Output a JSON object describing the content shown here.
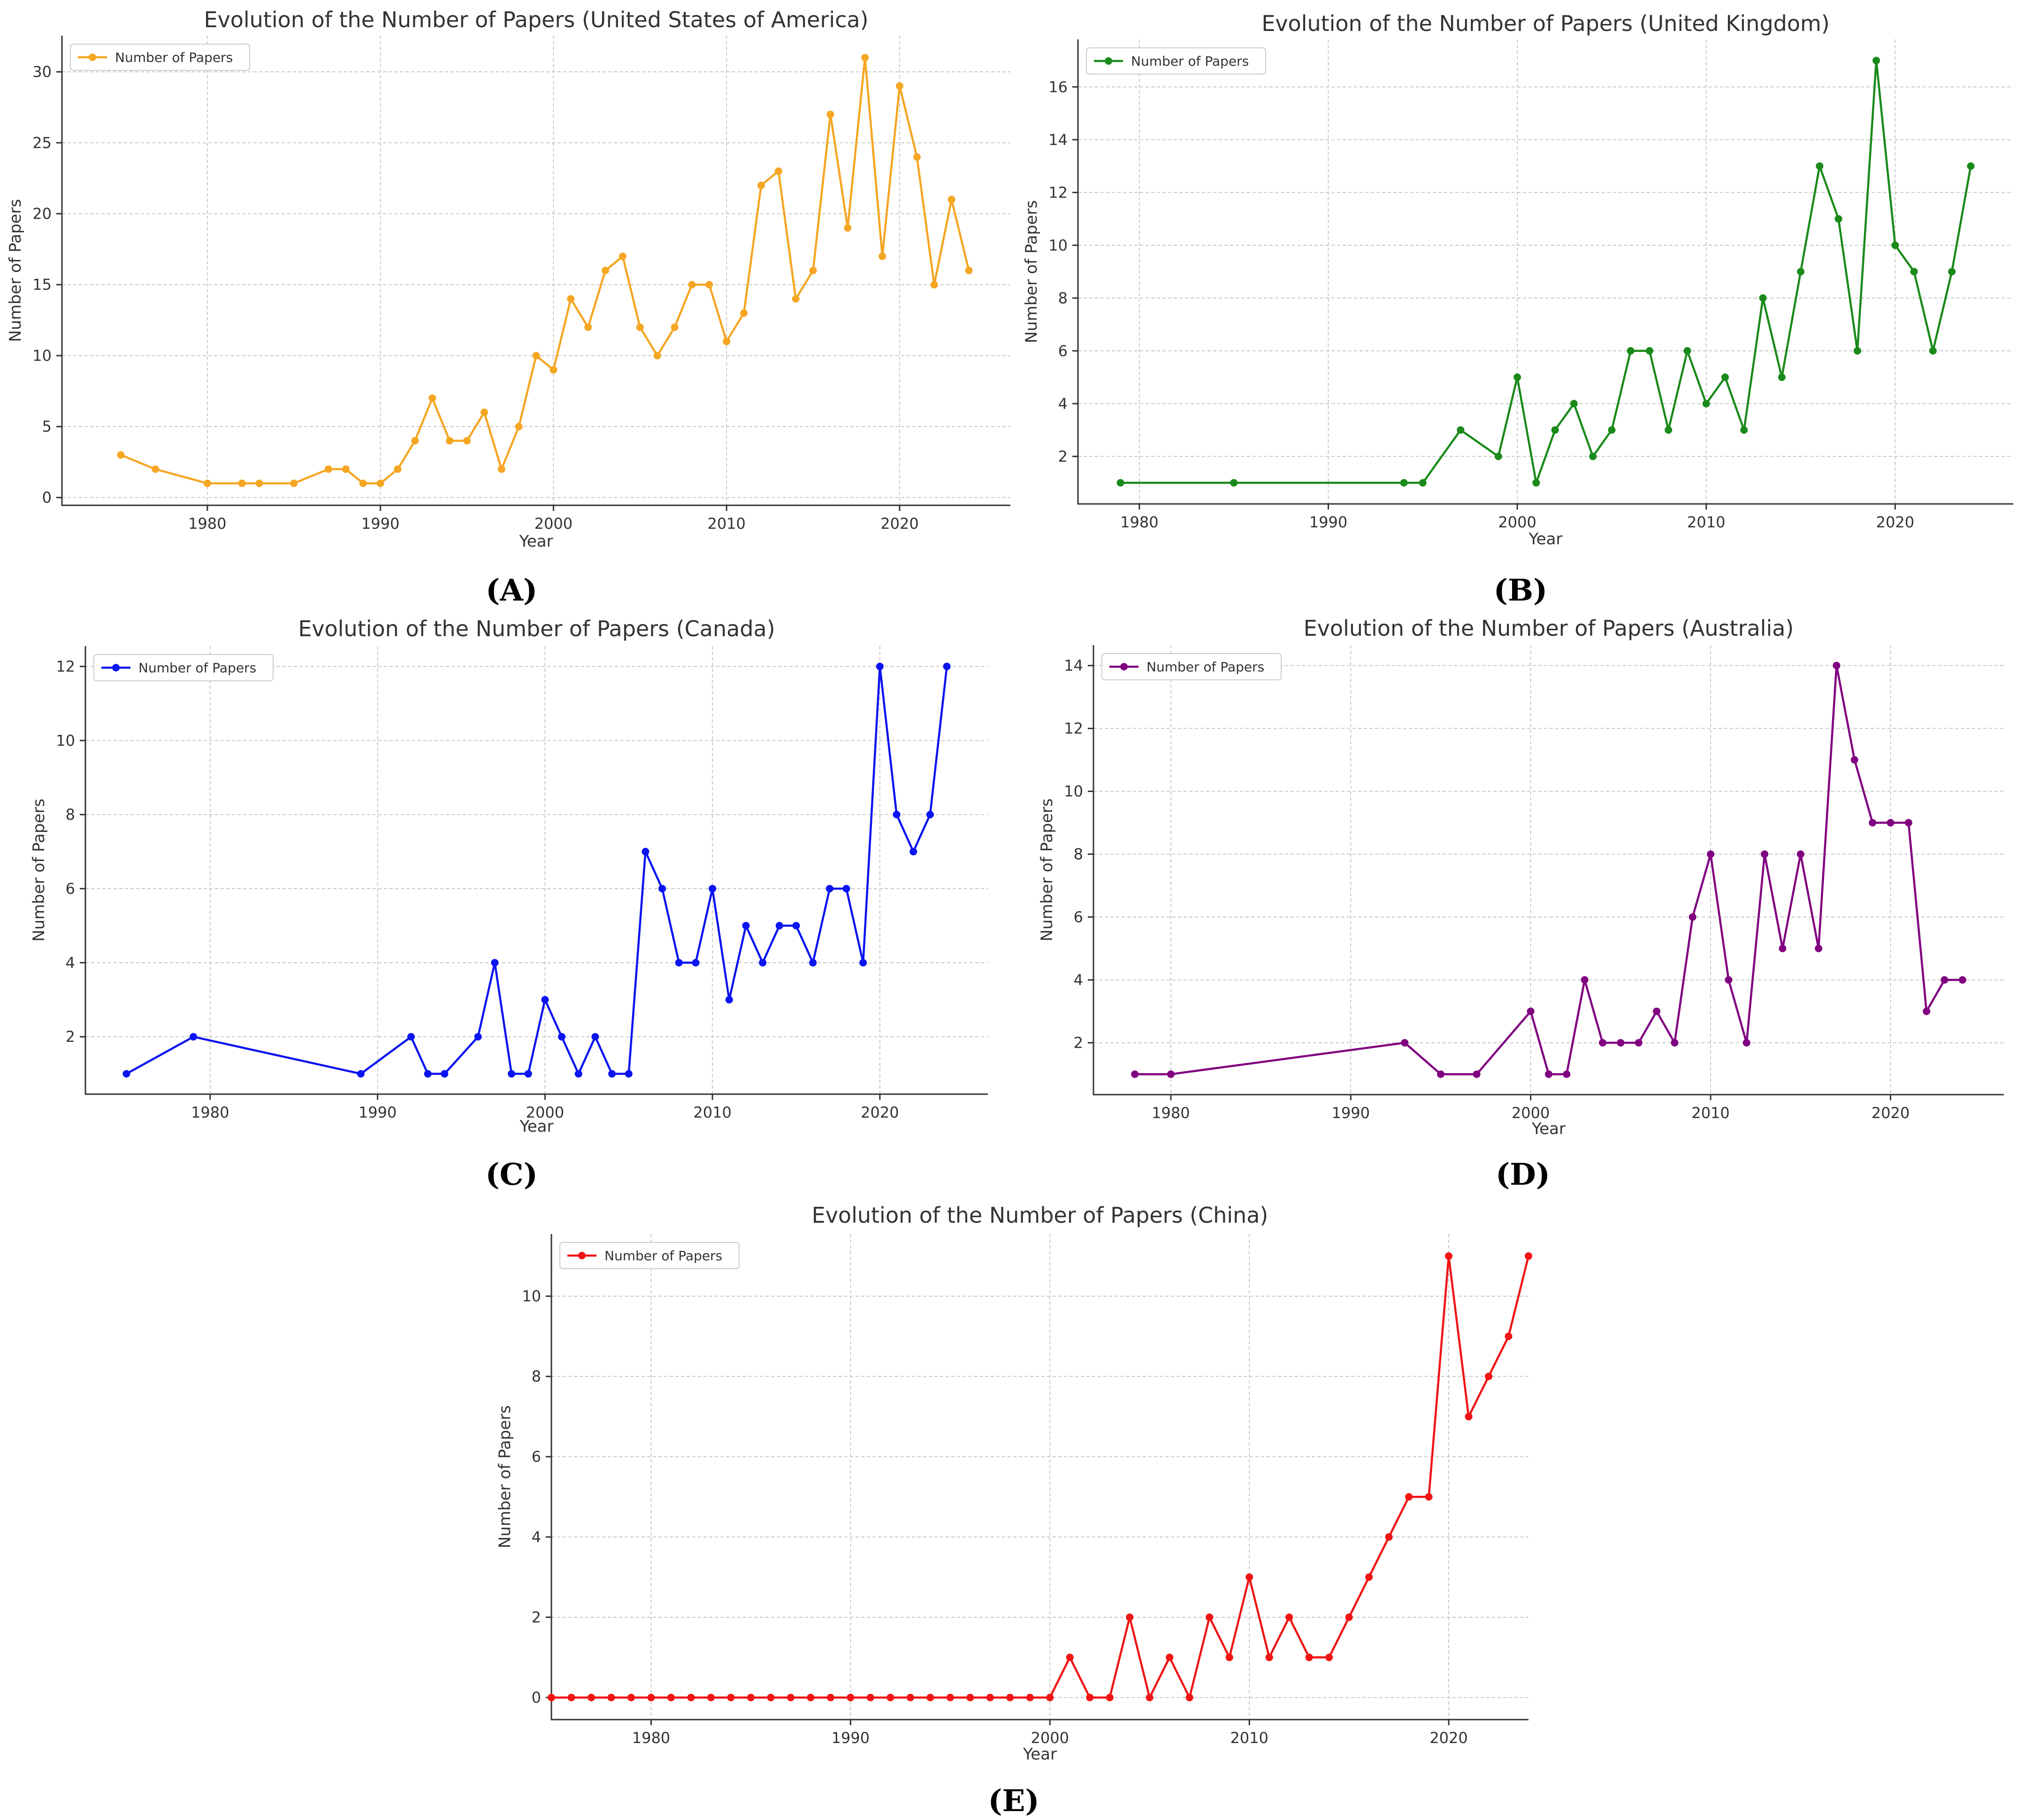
{
  "chart_data": [
    {
      "type": "line",
      "panel": "(A)",
      "title": "Evolution of the Number of Papers (United States of America)",
      "xlabel": "Year",
      "ylabel": "Number of Papers",
      "color": "#f5a623",
      "legend": "top-left",
      "grid": true,
      "xlim": [
        1971.6,
        2026.4
      ],
      "ylim": [
        -0.55,
        32.55
      ],
      "xticks": [
        1980,
        1990,
        2000,
        2010,
        2020
      ],
      "yticks": [
        0,
        5,
        10,
        15,
        20,
        25,
        30
      ],
      "series": [
        {
          "name": "Number of Papers",
          "x": [
            1975,
            1977,
            1980,
            1982,
            1983,
            1985,
            1987,
            1988,
            1989,
            1990,
            1991,
            1992,
            1993,
            1994,
            1995,
            1996,
            1997,
            1998,
            1999,
            2000,
            2001,
            2002,
            2003,
            2004,
            2005,
            2006,
            2007,
            2008,
            2009,
            2010,
            2011,
            2012,
            2013,
            2014,
            2015,
            2016,
            2017,
            2018,
            2019,
            2020,
            2021,
            2022,
            2023,
            2024
          ],
          "y": [
            3,
            2,
            1,
            1,
            1,
            1,
            2,
            2,
            1,
            1,
            2,
            4,
            7,
            4,
            4,
            6,
            2,
            5,
            10,
            9,
            14,
            12,
            16,
            17,
            12,
            10,
            12,
            15,
            15,
            11,
            13,
            22,
            23,
            14,
            16,
            27,
            19,
            31,
            17,
            29,
            24,
            15,
            21,
            16
          ]
        }
      ]
    },
    {
      "type": "line",
      "panel": "(B)",
      "title": "Evolution of the Number of Papers (United Kingdom)",
      "xlabel": "Year",
      "ylabel": "Number of Papers",
      "color": "#1a8a1a",
      "legend": "top-left",
      "grid": true,
      "xlim": [
        1976.75,
        2026.25
      ],
      "ylim": [
        0.2,
        17.8
      ],
      "xticks": [
        1980,
        1990,
        2000,
        2010,
        2020
      ],
      "yticks": [
        2,
        4,
        6,
        8,
        10,
        12,
        14,
        16
      ],
      "series": [
        {
          "name": "Number of Papers",
          "x": [
            1979,
            1985,
            1994,
            1995,
            1997,
            1999,
            2000,
            2001,
            2002,
            2003,
            2004,
            2005,
            2006,
            2007,
            2008,
            2009,
            2010,
            2011,
            2012,
            2013,
            2014,
            2015,
            2016,
            2017,
            2018,
            2019,
            2020,
            2021,
            2022,
            2023,
            2024
          ],
          "y": [
            1,
            1,
            1,
            1,
            3,
            2,
            5,
            1,
            3,
            4,
            2,
            3,
            6,
            6,
            3,
            6,
            4,
            5,
            3,
            8,
            5,
            9,
            13,
            11,
            6,
            17,
            10,
            9,
            6,
            9,
            13
          ]
        }
      ]
    },
    {
      "type": "line",
      "panel": "(C)",
      "title": "Evolution of the Number of Papers (Canada)",
      "xlabel": "Year",
      "ylabel": "Number of Papers",
      "color": "#0a14f0",
      "legend": "top-left",
      "grid": true,
      "xlim": [
        1972.55,
        2026.45
      ],
      "ylim": [
        0.45,
        12.55
      ],
      "xticks": [
        1980,
        1990,
        2000,
        2010,
        2020
      ],
      "yticks": [
        2,
        4,
        6,
        8,
        10,
        12
      ],
      "series": [
        {
          "name": "Number of Papers",
          "x": [
            1975,
            1979,
            1989,
            1992,
            1993,
            1994,
            1996,
            1997,
            1998,
            1999,
            2000,
            2001,
            2002,
            2003,
            2004,
            2005,
            2006,
            2007,
            2008,
            2009,
            2010,
            2011,
            2012,
            2013,
            2014,
            2015,
            2016,
            2017,
            2018,
            2019,
            2020,
            2021,
            2022,
            2023,
            2024
          ],
          "y": [
            1,
            2,
            1,
            2,
            1,
            1,
            2,
            4,
            1,
            1,
            3,
            2,
            1,
            2,
            1,
            1,
            7,
            6,
            4,
            4,
            6,
            3,
            5,
            4,
            5,
            5,
            4,
            6,
            6,
            4,
            12,
            8,
            7,
            8,
            12
          ]
        }
      ]
    },
    {
      "type": "line",
      "panel": "(D)",
      "title": "Evolution of the Number of Papers (Australia)",
      "xlabel": "Year",
      "ylabel": "Number of Papers",
      "color": "#800080",
      "legend": "top-left",
      "grid": true,
      "xlim": [
        1975.7,
        2026.3
      ],
      "ylim": [
        0.35,
        14.65
      ],
      "xticks": [
        1980,
        1990,
        2000,
        2010,
        2020
      ],
      "yticks": [
        2,
        4,
        6,
        8,
        10,
        12,
        14
      ],
      "series": [
        {
          "name": "Number of Papers",
          "x": [
            1978,
            1980,
            1993,
            1995,
            1997,
            2000,
            2001,
            2002,
            2003,
            2004,
            2005,
            2006,
            2007,
            2008,
            2009,
            2010,
            2011,
            2012,
            2013,
            2014,
            2015,
            2016,
            2017,
            2018,
            2019,
            2020,
            2021,
            2022,
            2023,
            2024
          ],
          "y": [
            1,
            1,
            2,
            1,
            1,
            3,
            1,
            1,
            4,
            2,
            2,
            2,
            3,
            2,
            6,
            8,
            4,
            2,
            8,
            5,
            8,
            5,
            14,
            11,
            9,
            9,
            9,
            3,
            4,
            4
          ]
        }
      ]
    },
    {
      "type": "line",
      "panel": "(E)",
      "title": "Evolution of the Number of Papers (China)",
      "xlabel": "Year",
      "ylabel": "Number of Papers",
      "color": "#f01414",
      "legend": "top-left",
      "grid": true,
      "xlim": [
        1975,
        2024
      ],
      "ylim": [
        -0.55,
        11.55
      ],
      "xticks": [
        1980,
        1990,
        2000,
        2010,
        2020
      ],
      "yticks": [
        0,
        2,
        4,
        6,
        8,
        10
      ],
      "series": [
        {
          "name": "Number of Papers",
          "x": [
            1975,
            1976,
            1977,
            1978,
            1979,
            1980,
            1981,
            1982,
            1983,
            1984,
            1985,
            1986,
            1987,
            1988,
            1989,
            1990,
            1991,
            1992,
            1993,
            1994,
            1995,
            1996,
            1997,
            1998,
            1999,
            2000,
            2001,
            2002,
            2003,
            2004,
            2005,
            2006,
            2007,
            2008,
            2009,
            2010,
            2011,
            2012,
            2013,
            2014,
            2015,
            2016,
            2017,
            2018,
            2019,
            2020,
            2021,
            2022,
            2023,
            2024
          ],
          "y": [
            0,
            0,
            0,
            0,
            0,
            0,
            0,
            0,
            0,
            0,
            0,
            0,
            0,
            0,
            0,
            0,
            0,
            0,
            0,
            0,
            0,
            0,
            0,
            0,
            0,
            0,
            1,
            0,
            0,
            2,
            0,
            1,
            0,
            2,
            1,
            3,
            1,
            2,
            1,
            1,
            2,
            3,
            4,
            5,
            5,
            11,
            7,
            8,
            9,
            11
          ]
        }
      ]
    }
  ]
}
